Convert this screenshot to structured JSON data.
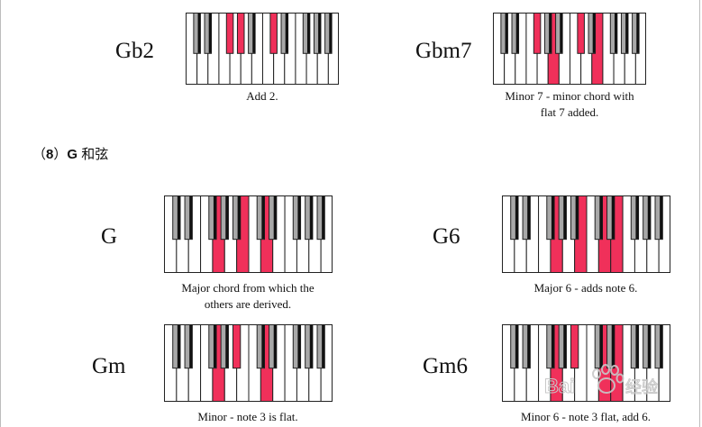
{
  "section": {
    "prefix": "（",
    "number": "8",
    "suffix": "）",
    "key": "G",
    "title": "和弦"
  },
  "watermark": {
    "text": "Bai du 经验"
  },
  "colors": {
    "highlight": "#f0305a",
    "black_key": "#111111",
    "black_key_grey": "#a8a8a8",
    "white_key": "#ffffff",
    "border": "#222222"
  },
  "chords": [
    {
      "id": "gb2",
      "name": "Gb2",
      "caption": [
        "Add 2."
      ],
      "notes": [
        6,
        8,
        13
      ]
    },
    {
      "id": "gbm7",
      "name": "Gbm7",
      "caption": [
        "Minor 7 - minor chord with",
        "flat 7 added."
      ],
      "notes": [
        6,
        9,
        13,
        16
      ]
    },
    {
      "id": "g",
      "name": "G",
      "caption": [
        "Major chord from which the",
        "others are derived."
      ],
      "notes": [
        7,
        11,
        14
      ]
    },
    {
      "id": "g6",
      "name": "G6",
      "caption": [
        "Major 6 - adds note 6."
      ],
      "notes": [
        7,
        11,
        14,
        16
      ]
    },
    {
      "id": "gm",
      "name": "Gm",
      "caption": [
        "Minor - note 3 is flat."
      ],
      "notes": [
        7,
        10,
        14
      ]
    },
    {
      "id": "gm6",
      "name": "Gm6",
      "caption": [
        "Minor 6 - note 3 flat, add 6."
      ],
      "notes": [
        7,
        10,
        14,
        16
      ]
    }
  ]
}
